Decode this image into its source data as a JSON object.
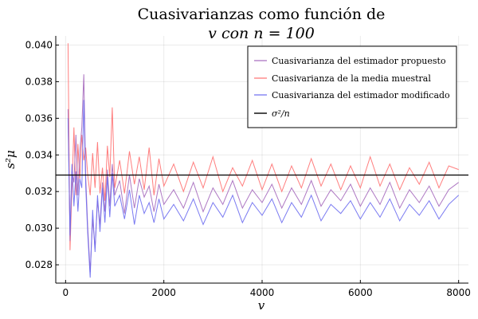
{
  "chart_data": {
    "type": "line",
    "title": [
      "Cuasivarianzas como función de",
      "v con n = 100"
    ],
    "xlabel": "v",
    "ylabel": "s²μ",
    "xlim": [
      -200,
      8200
    ],
    "ylim": [
      0.027,
      0.0405
    ],
    "xticks": [
      0,
      2000,
      4000,
      6000,
      8000
    ],
    "xtick_labels": [
      "0",
      "2000",
      "4000",
      "6000",
      "8000"
    ],
    "yticks": [
      0.028,
      0.03,
      0.032,
      0.034,
      0.036,
      0.038,
      0.04
    ],
    "ytick_labels": [
      "0.028",
      "0.030",
      "0.032",
      "0.034",
      "0.036",
      "0.038",
      "0.040"
    ],
    "grid": true,
    "legend_position": "top-right",
    "reference_value": 0.0329,
    "series": [
      {
        "name": "Cuasivarianza del estimador propuesto",
        "color": "#a569bd",
        "x": [
          50,
          90,
          130,
          170,
          210,
          250,
          290,
          330,
          370,
          410,
          450,
          500,
          550,
          600,
          650,
          700,
          750,
          800,
          850,
          900,
          950,
          1000,
          1100,
          1200,
          1300,
          1400,
          1500,
          1600,
          1700,
          1800,
          1900,
          2000,
          2200,
          2400,
          2600,
          2800,
          3000,
          3200,
          3400,
          3600,
          3800,
          4000,
          4200,
          4400,
          4600,
          4800,
          5000,
          5200,
          5400,
          5600,
          5800,
          6000,
          6200,
          6400,
          6600,
          6800,
          7000,
          7200,
          7400,
          7600,
          7800,
          8000
        ],
        "values": [
          0.0365,
          0.0293,
          0.0331,
          0.0325,
          0.0351,
          0.0318,
          0.0342,
          0.0355,
          0.0384,
          0.0328,
          0.0301,
          0.0276,
          0.0305,
          0.0289,
          0.0315,
          0.0302,
          0.0325,
          0.0309,
          0.0332,
          0.0312,
          0.0335,
          0.0318,
          0.0326,
          0.0308,
          0.0329,
          0.0311,
          0.0327,
          0.0317,
          0.0323,
          0.0309,
          0.0324,
          0.0313,
          0.0321,
          0.0311,
          0.0325,
          0.0309,
          0.0322,
          0.0313,
          0.0326,
          0.0311,
          0.0321,
          0.0314,
          0.0324,
          0.0311,
          0.0322,
          0.0313,
          0.0326,
          0.0312,
          0.0321,
          0.0315,
          0.0324,
          0.0312,
          0.0322,
          0.0313,
          0.0325,
          0.0311,
          0.0321,
          0.0314,
          0.0323,
          0.0312,
          0.0321,
          0.0325
        ]
      },
      {
        "name": "Cuasivarianza de la media muestral",
        "color": "#ff7070",
        "x": [
          50,
          90,
          130,
          170,
          210,
          250,
          290,
          330,
          370,
          410,
          450,
          500,
          550,
          600,
          650,
          700,
          750,
          800,
          850,
          900,
          950,
          1000,
          1100,
          1200,
          1300,
          1400,
          1500,
          1600,
          1700,
          1800,
          1900,
          2000,
          2200,
          2400,
          2600,
          2800,
          3000,
          3200,
          3400,
          3600,
          3800,
          4000,
          4200,
          4400,
          4600,
          4800,
          5000,
          5200,
          5400,
          5600,
          5800,
          6000,
          6200,
          6400,
          6600,
          6800,
          7000,
          7200,
          7400,
          7600,
          7800,
          8000
        ],
        "values": [
          0.0401,
          0.0288,
          0.0322,
          0.0355,
          0.0318,
          0.0346,
          0.0327,
          0.0351,
          0.0337,
          0.0344,
          0.0329,
          0.0318,
          0.0341,
          0.0322,
          0.0347,
          0.0319,
          0.0333,
          0.0315,
          0.0345,
          0.0328,
          0.0366,
          0.0322,
          0.0337,
          0.0319,
          0.0342,
          0.0324,
          0.0339,
          0.0321,
          0.0344,
          0.0318,
          0.0338,
          0.0323,
          0.0335,
          0.032,
          0.0336,
          0.0322,
          0.0339,
          0.032,
          0.0333,
          0.0323,
          0.0337,
          0.0321,
          0.0335,
          0.032,
          0.0334,
          0.0322,
          0.0338,
          0.0323,
          0.0335,
          0.0321,
          0.0334,
          0.0322,
          0.0339,
          0.0323,
          0.0335,
          0.0321,
          0.0333,
          0.0324,
          0.0336,
          0.0322,
          0.0334,
          0.0332
        ]
      },
      {
        "name": "Cuasivarianza del estimador modificado",
        "color": "#6b6bf0",
        "x": [
          50,
          90,
          130,
          170,
          210,
          250,
          290,
          330,
          370,
          410,
          450,
          500,
          550,
          600,
          650,
          700,
          750,
          800,
          850,
          900,
          950,
          1000,
          1100,
          1200,
          1300,
          1400,
          1500,
          1600,
          1700,
          1800,
          1900,
          2000,
          2200,
          2400,
          2600,
          2800,
          3000,
          3200,
          3400,
          3600,
          3800,
          4000,
          4200,
          4400,
          4600,
          4800,
          5000,
          5200,
          5400,
          5600,
          5800,
          6000,
          6200,
          6400,
          6600,
          6800,
          7000,
          7200,
          7400,
          7600,
          7800,
          8000
        ],
        "values": [
          0.036,
          0.0296,
          0.0335,
          0.0312,
          0.0331,
          0.0309,
          0.0327,
          0.0322,
          0.037,
          0.0323,
          0.0297,
          0.0273,
          0.031,
          0.0287,
          0.0318,
          0.0298,
          0.0322,
          0.0303,
          0.0328,
          0.0306,
          0.033,
          0.0312,
          0.0318,
          0.0305,
          0.0321,
          0.0302,
          0.0318,
          0.0308,
          0.0314,
          0.0303,
          0.0316,
          0.0305,
          0.0313,
          0.0304,
          0.0316,
          0.0302,
          0.0314,
          0.0306,
          0.0318,
          0.0303,
          0.0314,
          0.0307,
          0.0316,
          0.0303,
          0.0314,
          0.0306,
          0.0318,
          0.0304,
          0.0313,
          0.0308,
          0.0315,
          0.0305,
          0.0314,
          0.0306,
          0.0316,
          0.0304,
          0.0313,
          0.0307,
          0.0315,
          0.0305,
          0.0313,
          0.0318
        ]
      },
      {
        "name": "σ²/n",
        "color": "#000000",
        "x": [
          -200,
          8200
        ],
        "values": [
          0.0329,
          0.0329
        ]
      }
    ]
  }
}
